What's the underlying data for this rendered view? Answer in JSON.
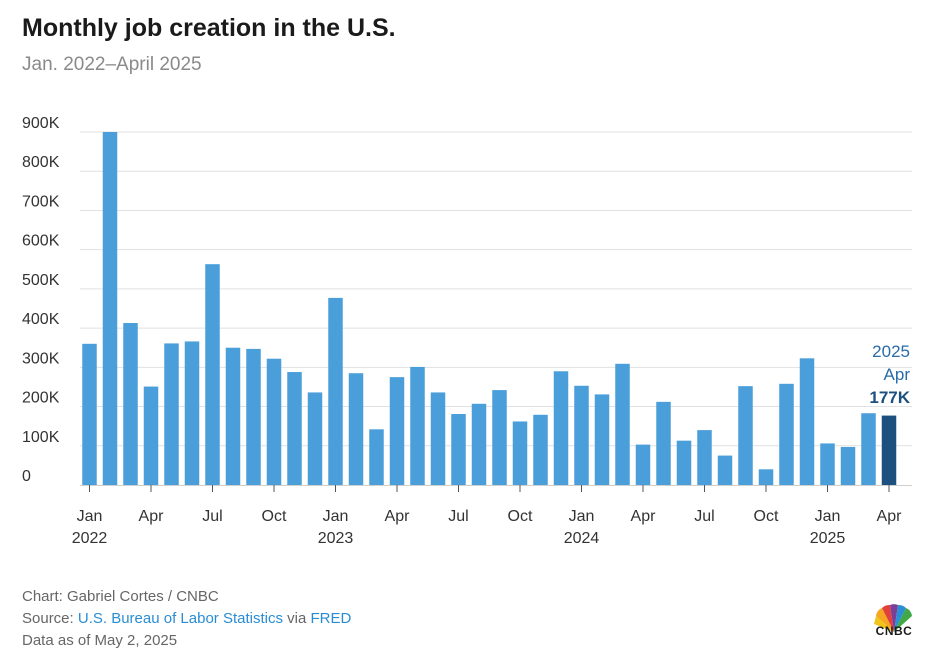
{
  "chart_data": {
    "type": "bar",
    "title": "Monthly job creation in the U.S.",
    "subtitle": "Jan. 2022–April 2025",
    "ylim": [
      0,
      900000
    ],
    "yticks": [
      0,
      100000,
      200000,
      300000,
      400000,
      500000,
      600000,
      700000,
      800000,
      900000
    ],
    "ytick_labels": [
      "0",
      "100K",
      "200K",
      "300K",
      "400K",
      "500K",
      "600K",
      "700K",
      "800K",
      "900K"
    ],
    "grid": true,
    "x_ticks": [
      {
        "index": 0,
        "month": "Jan",
        "year": "2022"
      },
      {
        "index": 3,
        "month": "Apr",
        "year": ""
      },
      {
        "index": 6,
        "month": "Jul",
        "year": ""
      },
      {
        "index": 9,
        "month": "Oct",
        "year": ""
      },
      {
        "index": 12,
        "month": "Jan",
        "year": "2023"
      },
      {
        "index": 15,
        "month": "Apr",
        "year": ""
      },
      {
        "index": 18,
        "month": "Jul",
        "year": ""
      },
      {
        "index": 21,
        "month": "Oct",
        "year": ""
      },
      {
        "index": 24,
        "month": "Jan",
        "year": "2024"
      },
      {
        "index": 27,
        "month": "Apr",
        "year": ""
      },
      {
        "index": 30,
        "month": "Jul",
        "year": ""
      },
      {
        "index": 33,
        "month": "Oct",
        "year": ""
      },
      {
        "index": 36,
        "month": "Jan",
        "year": "2025"
      },
      {
        "index": 39,
        "month": "Apr",
        "year": ""
      }
    ],
    "categories": [
      "Jan 2022",
      "Feb 2022",
      "Mar 2022",
      "Apr 2022",
      "May 2022",
      "Jun 2022",
      "Jul 2022",
      "Aug 2022",
      "Sep 2022",
      "Oct 2022",
      "Nov 2022",
      "Dec 2022",
      "Jan 2023",
      "Feb 2023",
      "Mar 2023",
      "Apr 2023",
      "May 2023",
      "Jun 2023",
      "Jul 2023",
      "Aug 2023",
      "Sep 2023",
      "Oct 2023",
      "Nov 2023",
      "Dec 2023",
      "Jan 2024",
      "Feb 2024",
      "Mar 2024",
      "Apr 2024",
      "May 2024",
      "Jun 2024",
      "Jul 2024",
      "Aug 2024",
      "Sep 2024",
      "Oct 2024",
      "Nov 2024",
      "Dec 2024",
      "Jan 2025",
      "Feb 2025",
      "Mar 2025",
      "Apr 2025"
    ],
    "values": [
      360000,
      900000,
      413000,
      251000,
      361000,
      366000,
      563000,
      350000,
      347000,
      322000,
      288000,
      236000,
      477000,
      285000,
      142000,
      275000,
      301000,
      236000,
      181000,
      207000,
      242000,
      162000,
      179000,
      290000,
      253000,
      231000,
      309000,
      103000,
      212000,
      113000,
      140000,
      75000,
      252000,
      40000,
      258000,
      323000,
      106000,
      97000,
      183000,
      177000
    ],
    "highlight_index": 39,
    "colors": {
      "bar": "#4a9fdb",
      "highlight": "#1d4f7f",
      "grid": "#e1e1e1",
      "label": "#2a6ba8"
    },
    "annotation": {
      "year": "2025",
      "month": "Apr",
      "value": "177K"
    }
  },
  "footer": {
    "credit": "Chart: Gabriel Cortes / CNBC",
    "source_prefix": "Source: ",
    "source_link1": "U.S. Bureau of Labor Statistics",
    "source_mid": " via ",
    "source_link2": "FRED",
    "date": "Data as of May 2, 2025"
  },
  "logo": {
    "text": "CNBC",
    "icon": "cnbc-peacock-icon"
  }
}
